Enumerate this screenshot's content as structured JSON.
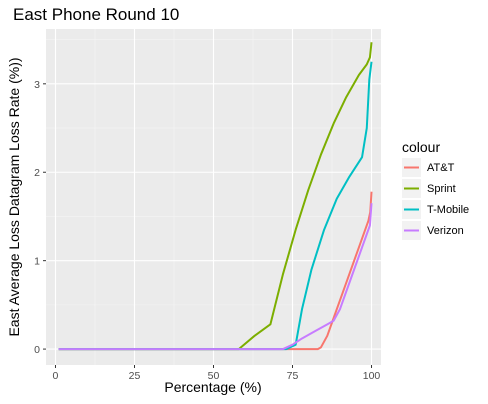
{
  "chart_data": {
    "type": "line",
    "title": "East Phone Round 10",
    "xlabel": "Percentage (%)",
    "ylabel": "East Average Loss Datagram Loss Rate (%))",
    "xlim": [
      -3,
      103
    ],
    "ylim": [
      -0.18,
      3.62
    ],
    "xticks": [
      0,
      25,
      50,
      75,
      100
    ],
    "yticks": [
      0,
      1,
      2,
      3
    ],
    "grid": true,
    "legend_title": "colour",
    "legend_position": "right",
    "series": [
      {
        "name": "AT&T",
        "color": "#F8766D",
        "points": [
          [
            1,
            0
          ],
          [
            30,
            0
          ],
          [
            60,
            0
          ],
          [
            75,
            0
          ],
          [
            83,
            0
          ],
          [
            84,
            0.02
          ],
          [
            86,
            0.15
          ],
          [
            88,
            0.35
          ],
          [
            90,
            0.55
          ],
          [
            93,
            0.85
          ],
          [
            96,
            1.15
          ],
          [
            98,
            1.35
          ],
          [
            99,
            1.45
          ],
          [
            99.6,
            1.55
          ],
          [
            100,
            1.78
          ]
        ]
      },
      {
        "name": "Sprint",
        "color": "#7CAE00",
        "points": [
          [
            1,
            0
          ],
          [
            30,
            0
          ],
          [
            58,
            0
          ],
          [
            63,
            0.15
          ],
          [
            68,
            0.28
          ],
          [
            72,
            0.85
          ],
          [
            76,
            1.35
          ],
          [
            80,
            1.8
          ],
          [
            84,
            2.2
          ],
          [
            88,
            2.55
          ],
          [
            92,
            2.85
          ],
          [
            96,
            3.1
          ],
          [
            98.5,
            3.22
          ],
          [
            99.5,
            3.3
          ],
          [
            100,
            3.47
          ]
        ]
      },
      {
        "name": "T-Mobile",
        "color": "#00BFC4",
        "points": [
          [
            1,
            0
          ],
          [
            40,
            0
          ],
          [
            73,
            0
          ],
          [
            76,
            0.05
          ],
          [
            78,
            0.45
          ],
          [
            81,
            0.9
          ],
          [
            85,
            1.35
          ],
          [
            89,
            1.7
          ],
          [
            93,
            1.95
          ],
          [
            97,
            2.17
          ],
          [
            98.5,
            2.5
          ],
          [
            99.3,
            3.05
          ],
          [
            100,
            3.25
          ]
        ]
      },
      {
        "name": "Verizon",
        "color": "#C77CFF",
        "points": [
          [
            1,
            0
          ],
          [
            40,
            0
          ],
          [
            72,
            0
          ],
          [
            75,
            0.05
          ],
          [
            78,
            0.12
          ],
          [
            82,
            0.2
          ],
          [
            86,
            0.28
          ],
          [
            88,
            0.32
          ],
          [
            90,
            0.45
          ],
          [
            93,
            0.75
          ],
          [
            96,
            1.05
          ],
          [
            98.5,
            1.3
          ],
          [
            99.5,
            1.4
          ],
          [
            100,
            1.65
          ]
        ]
      }
    ]
  }
}
